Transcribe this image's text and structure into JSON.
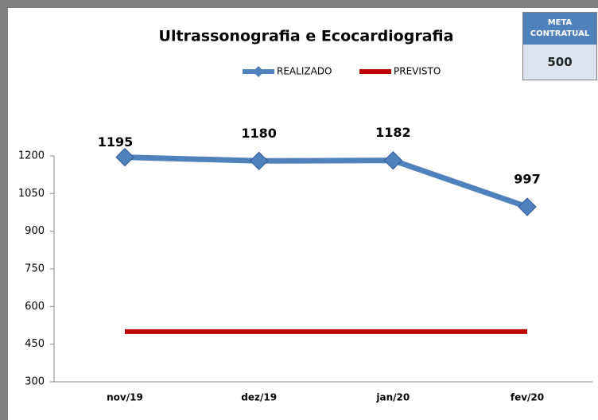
{
  "chart_data": {
    "type": "line",
    "title": "Ultrassonografia e Ecocardiografia",
    "categories": [
      "nov/19",
      "dez/19",
      "jan/20",
      "fev/20"
    ],
    "series": [
      {
        "name": "REALIZADO",
        "color": "#4f81bd",
        "values": [
          1195,
          1180,
          1182,
          997
        ]
      },
      {
        "name": "PREVISTO",
        "color": "#c00000",
        "values": [
          500,
          500,
          500,
          500
        ]
      }
    ],
    "ylim": [
      300,
      1200
    ],
    "yticks": [
      300,
      450,
      600,
      750,
      900,
      1050,
      1200
    ],
    "legend": "top",
    "data_labels_series": 0,
    "meta_label": "META CONTRATUAL",
    "meta_value": "500"
  }
}
